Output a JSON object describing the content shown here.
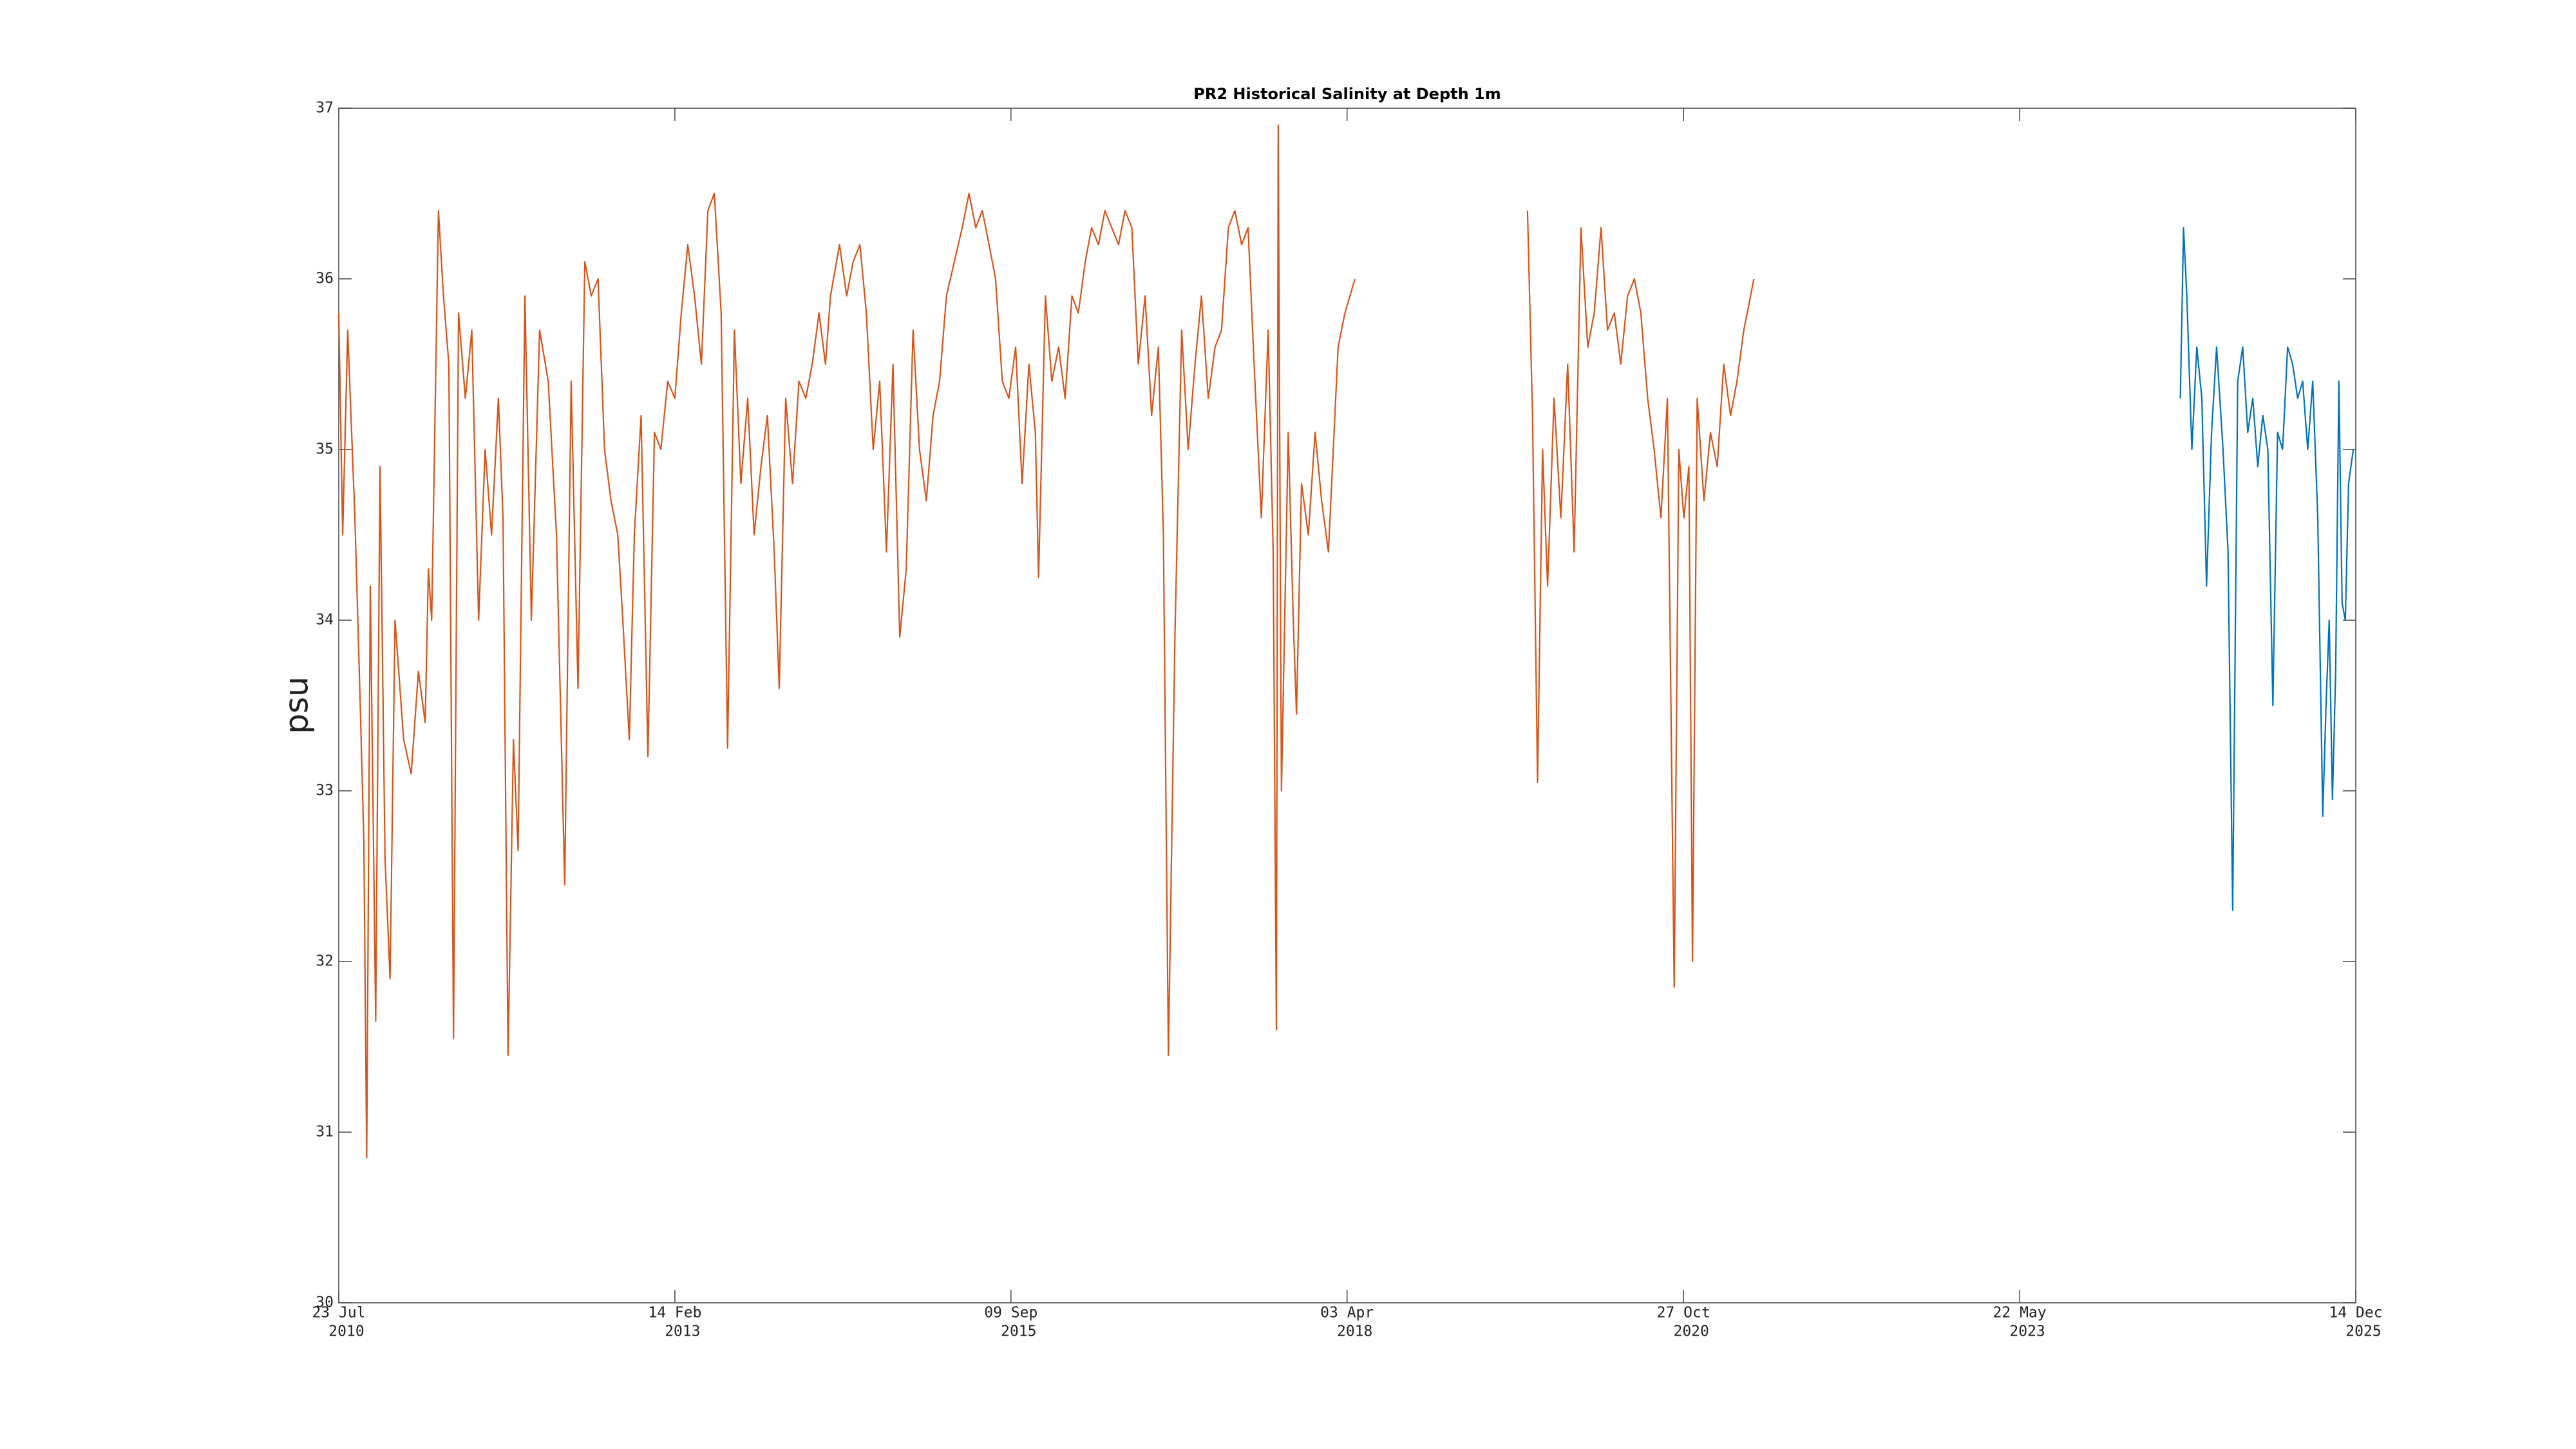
{
  "chart_data": {
    "type": "line",
    "title": "PR2 Historical Salinity at Depth 1m",
    "ylabel": "psu",
    "xlim": [
      "2010-07-23",
      "2025-12-14"
    ],
    "xticks": [
      {
        "value": "2010-07-23",
        "label": [
          "23 Jul",
          "2010"
        ]
      },
      {
        "value": "2013-02-14",
        "label": [
          "14 Feb",
          "2013"
        ]
      },
      {
        "value": "2015-09-09",
        "label": [
          "09 Sep",
          "2015"
        ]
      },
      {
        "value": "2018-04-03",
        "label": [
          "03 Apr",
          "2018"
        ]
      },
      {
        "value": "2020-10-27",
        "label": [
          "27 Oct",
          "2020"
        ]
      },
      {
        "value": "2023-05-22",
        "label": [
          "22 May",
          "2023"
        ]
      },
      {
        "value": "2025-12-14",
        "label": [
          "14 Dec",
          "2025"
        ]
      }
    ],
    "ylim": [
      30,
      37
    ],
    "yticks": [
      30,
      31,
      32,
      33,
      34,
      35,
      36,
      37
    ],
    "grid": false,
    "box": true,
    "series": [
      {
        "color": "#d95319",
        "x": [
          "2010-07-23",
          "2010-08-03",
          "2010-08-17",
          "2010-09-06",
          "2010-09-21",
          "2010-10-01",
          "2010-10-09",
          "2010-10-19",
          "2010-11-03",
          "2010-11-15",
          "2010-11-29",
          "2010-12-13",
          "2010-12-27",
          "2011-01-20",
          "2011-02-10",
          "2011-03-02",
          "2011-03-21",
          "2011-03-30",
          "2011-04-08",
          "2011-04-27",
          "2011-05-11",
          "2011-05-26",
          "2011-06-08",
          "2011-06-22",
          "2011-07-11",
          "2011-07-29",
          "2011-08-17",
          "2011-09-04",
          "2011-09-22",
          "2011-10-11",
          "2011-10-24",
          "2011-11-07",
          "2011-11-22",
          "2011-12-05",
          "2011-12-24",
          "2012-01-11",
          "2012-02-03",
          "2012-02-27",
          "2012-03-21",
          "2012-04-13",
          "2012-05-01",
          "2012-05-20",
          "2012-06-08",
          "2012-06-26",
          "2012-07-15",
          "2012-08-02",
          "2012-08-20",
          "2012-09-08",
          "2012-09-22",
          "2012-10-10",
          "2012-10-24",
          "2012-11-12",
          "2012-12-01",
          "2012-12-19",
          "2013-01-06",
          "2013-01-25",
          "2013-02-14",
          "2013-03-04",
          "2013-03-22",
          "2013-04-10",
          "2013-04-29",
          "2013-05-17",
          "2013-06-04",
          "2013-06-23",
          "2013-07-11",
          "2013-07-30",
          "2013-08-17",
          "2013-09-05",
          "2013-09-23",
          "2013-10-12",
          "2013-10-30",
          "2013-11-18",
          "2013-12-02",
          "2013-12-20",
          "2014-01-08",
          "2014-01-26",
          "2014-02-14",
          "2014-03-04",
          "2014-03-23",
          "2014-04-10",
          "2014-04-24",
          "2014-05-19",
          "2014-06-08",
          "2014-06-26",
          "2014-07-15",
          "2014-08-02",
          "2014-08-21",
          "2014-09-08",
          "2014-09-27",
          "2014-10-15",
          "2014-11-03",
          "2014-11-21",
          "2014-12-10",
          "2014-12-28",
          "2015-01-16",
          "2015-02-04",
          "2015-02-22",
          "2015-03-13",
          "2015-04-26",
          "2015-05-15",
          "2015-06-03",
          "2015-06-21",
          "2015-07-10",
          "2015-07-28",
          "2015-08-16",
          "2015-09-03",
          "2015-09-22",
          "2015-10-10",
          "2015-10-29",
          "2015-11-16",
          "2015-11-25",
          "2015-12-14",
          "2016-01-01",
          "2016-01-20",
          "2016-02-07",
          "2016-02-26",
          "2016-03-15",
          "2016-04-03",
          "2016-04-21",
          "2016-05-10",
          "2016-05-28",
          "2016-06-16",
          "2016-07-05",
          "2016-07-23",
          "2016-08-11",
          "2016-08-29",
          "2016-09-17",
          "2016-10-05",
          "2016-10-24",
          "2016-11-07",
          "2016-11-21",
          "2016-12-09",
          "2016-12-28",
          "2017-01-15",
          "2017-02-03",
          "2017-02-21",
          "2017-03-12",
          "2017-03-31",
          "2017-04-18",
          "2017-05-07",
          "2017-05-25",
          "2017-06-13",
          "2017-07-01",
          "2017-07-20",
          "2017-08-07",
          "2017-08-26",
          "2017-09-09",
          "2017-09-18",
          "2017-09-23",
          "2017-10-02",
          "2017-10-21",
          "2017-11-04",
          "2017-11-13",
          "2017-11-27",
          "2017-12-16",
          "2018-01-04",
          "2018-01-22",
          "2018-02-10",
          "2018-02-28",
          "2018-03-09",
          "2018-03-28",
          "2018-04-11",
          "2018-04-25",
          "2018-12-01",
          "2019-08-19",
          "2019-09-02",
          "2019-09-16",
          "2019-09-30",
          "2019-10-14",
          "2019-11-01",
          "2019-11-20",
          "2019-12-09",
          "2019-12-27",
          "2020-01-15",
          "2020-02-03",
          "2020-02-21",
          "2020-03-11",
          "2020-03-29",
          "2020-04-17",
          "2020-05-05",
          "2020-05-24",
          "2020-06-12",
          "2020-06-30",
          "2020-07-19",
          "2020-08-06",
          "2020-08-25",
          "2020-09-12",
          "2020-10-01",
          "2020-10-14",
          "2020-10-28",
          "2020-11-11",
          "2020-11-21",
          "2020-12-04",
          "2020-12-23",
          "2021-01-10",
          "2021-01-29",
          "2021-02-16",
          "2021-03-07",
          "2021-03-25",
          "2021-04-13",
          "2021-05-02",
          "2021-05-11"
        ],
        "values": [
          35.8,
          34.5,
          35.7,
          34.6,
          33.5,
          32.7,
          30.85,
          34.2,
          31.65,
          34.9,
          32.6,
          31.9,
          34.0,
          33.3,
          33.1,
          33.7,
          33.4,
          34.3,
          34.0,
          36.4,
          35.9,
          35.5,
          31.55,
          35.8,
          35.3,
          35.7,
          34.0,
          35.0,
          34.5,
          35.3,
          34.6,
          31.45,
          33.3,
          32.65,
          35.9,
          34.0,
          35.7,
          35.4,
          34.5,
          32.45,
          35.4,
          33.6,
          36.1,
          35.9,
          36.0,
          35.0,
          34.7,
          34.5,
          34.0,
          33.3,
          34.5,
          35.2,
          33.2,
          35.1,
          35.0,
          35.4,
          35.3,
          35.8,
          36.2,
          35.9,
          35.5,
          36.4,
          36.5,
          35.8,
          33.25,
          35.7,
          34.8,
          35.3,
          34.5,
          34.9,
          35.2,
          34.4,
          33.6,
          35.3,
          34.8,
          35.4,
          35.3,
          35.5,
          35.8,
          35.5,
          35.9,
          36.2,
          35.9,
          36.1,
          36.2,
          35.8,
          35.0,
          35.4,
          34.4,
          35.5,
          33.9,
          34.3,
          35.7,
          35.0,
          34.7,
          35.2,
          35.4,
          35.9,
          36.3,
          36.5,
          36.3,
          36.4,
          36.2,
          36.0,
          35.4,
          35.3,
          35.6,
          34.8,
          35.5,
          35.1,
          34.25,
          35.9,
          35.4,
          35.6,
          35.3,
          35.9,
          35.8,
          36.1,
          36.3,
          36.2,
          36.4,
          36.3,
          36.2,
          36.4,
          36.3,
          35.5,
          35.9,
          35.2,
          35.6,
          34.5,
          31.45,
          33.9,
          35.7,
          35.0,
          35.5,
          35.9,
          35.3,
          35.6,
          35.7,
          36.3,
          36.4,
          36.2,
          36.3,
          35.4,
          34.6,
          35.7,
          34.4,
          31.6,
          36.9,
          33.0,
          35.1,
          34.0,
          33.45,
          34.8,
          34.5,
          35.1,
          34.7,
          34.4,
          35.2,
          35.6,
          35.8,
          35.9,
          36.0,
          null,
          36.4,
          35.2,
          33.05,
          35.0,
          34.2,
          35.3,
          34.6,
          35.5,
          34.4,
          36.3,
          35.6,
          35.8,
          36.3,
          35.7,
          35.8,
          35.5,
          35.9,
          36.0,
          35.8,
          35.3,
          35.0,
          34.6,
          35.3,
          31.85,
          35.0,
          34.6,
          34.9,
          32.0,
          35.3,
          34.7,
          35.1,
          34.9,
          35.5,
          35.2,
          35.4,
          35.7,
          35.9,
          36.0
        ]
      },
      {
        "color": "#0072bd",
        "x": [
          "2024-08-12",
          "2024-08-21",
          "2024-08-30",
          "2024-09-13",
          "2024-09-27",
          "2024-10-11",
          "2024-10-24",
          "2024-11-07",
          "2024-11-21",
          "2024-12-09",
          "2024-12-23",
          "2025-01-05",
          "2025-01-19",
          "2025-02-02",
          "2025-02-16",
          "2025-03-02",
          "2025-03-16",
          "2025-03-30",
          "2025-04-13",
          "2025-04-27",
          "2025-05-10",
          "2025-05-24",
          "2025-06-07",
          "2025-06-21",
          "2025-07-05",
          "2025-07-19",
          "2025-08-02",
          "2025-08-16",
          "2025-08-30",
          "2025-09-13",
          "2025-09-22",
          "2025-10-01",
          "2025-10-10",
          "2025-10-19",
          "2025-10-28",
          "2025-11-06",
          "2025-11-15",
          "2025-11-24",
          "2025-12-07"
        ],
        "values": [
          35.3,
          36.3,
          35.9,
          35.0,
          35.6,
          35.3,
          34.2,
          35.1,
          35.6,
          35.0,
          34.4,
          32.3,
          35.4,
          35.6,
          35.1,
          35.3,
          34.9,
          35.2,
          35.0,
          33.5,
          35.1,
          35.0,
          35.6,
          35.5,
          35.3,
          35.4,
          35.0,
          35.4,
          34.6,
          32.85,
          33.5,
          34.0,
          32.95,
          33.7,
          35.4,
          34.1,
          34.0,
          34.8,
          35.0
        ]
      }
    ]
  }
}
